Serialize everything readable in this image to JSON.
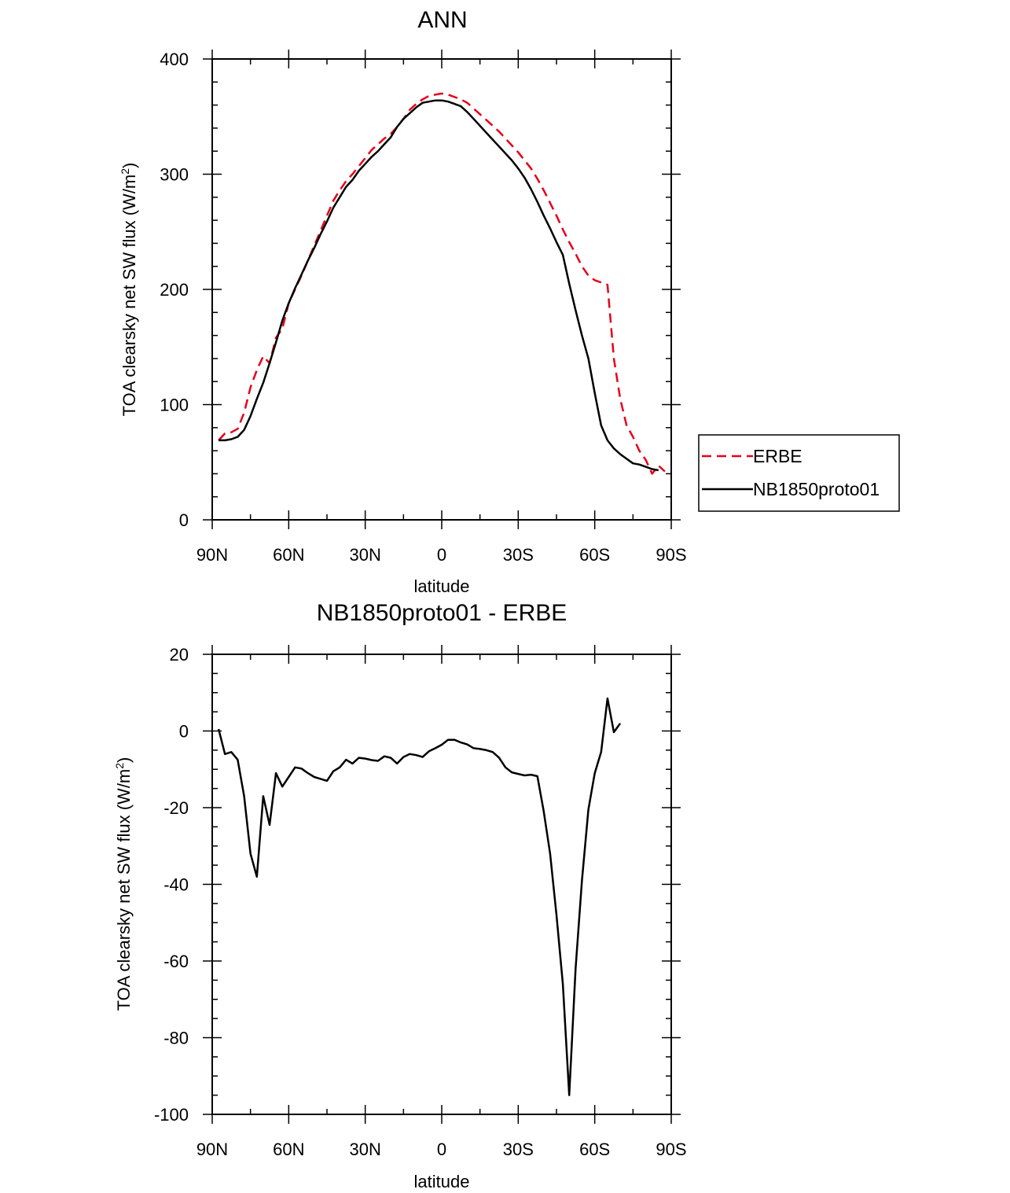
{
  "chart_data": [
    {
      "type": "line",
      "title": "ANN",
      "xlabel": "latitude",
      "ylabel": "TOA clearsky net SW flux (W/m",
      "ylabel_sup": "2",
      "ylabel_end": ")",
      "xlim": [
        90,
        -90
      ],
      "ylim": [
        0,
        400
      ],
      "xticks": [
        90,
        60,
        30,
        0,
        -30,
        -60,
        -90
      ],
      "xtick_labels": [
        "90N",
        "60N",
        "30N",
        "0",
        "30S",
        "60S",
        "90S"
      ],
      "yticks": [
        0,
        100,
        200,
        300,
        400
      ],
      "ytick_labels": [
        "0",
        "100",
        "200",
        "300",
        "400"
      ],
      "legend": {
        "position": "right",
        "entries": [
          "ERBE",
          "NB1850proto01"
        ]
      },
      "series": [
        {
          "name": "ERBE",
          "color": "#e8001a",
          "style": "dashed",
          "points": [
            [
              87.5,
              69
            ],
            [
              85,
              75
            ],
            [
              82.5,
              76
            ],
            [
              80,
              79
            ],
            [
              77.5,
              93
            ],
            [
              75,
              115
            ],
            [
              72.5,
              130
            ],
            [
              70,
              142
            ],
            [
              67.5,
              136
            ],
            [
              65,
              158
            ],
            [
              62.5,
              166
            ],
            [
              60,
              188
            ],
            [
              57.5,
              200
            ],
            [
              55,
              212
            ],
            [
              52.5,
              225
            ],
            [
              50,
              238
            ],
            [
              47.5,
              251
            ],
            [
              45,
              264
            ],
            [
              42.5,
              277
            ],
            [
              40,
              286
            ],
            [
              37.5,
              294
            ],
            [
              35,
              300
            ],
            [
              32.5,
              307
            ],
            [
              30,
              314
            ],
            [
              27.5,
              321
            ],
            [
              25,
              326
            ],
            [
              22.5,
              331
            ],
            [
              20,
              335
            ],
            [
              17.5,
              341
            ],
            [
              15,
              348
            ],
            [
              12.5,
              356
            ],
            [
              10,
              361
            ],
            [
              7.5,
              365
            ],
            [
              5,
              368
            ],
            [
              2.5,
              369
            ],
            [
              0,
              370
            ],
            [
              -2.5,
              369
            ],
            [
              -5,
              367
            ],
            [
              -7.5,
              365
            ],
            [
              -10,
              362
            ],
            [
              -12.5,
              357
            ],
            [
              -15,
              352
            ],
            [
              -17.5,
              347
            ],
            [
              -20,
              342
            ],
            [
              -22.5,
              337
            ],
            [
              -25,
              331
            ],
            [
              -27.5,
              325
            ],
            [
              -30,
              319
            ],
            [
              -32.5,
              312
            ],
            [
              -35,
              305
            ],
            [
              -37.5,
              296
            ],
            [
              -40,
              286
            ],
            [
              -42.5,
              275
            ],
            [
              -45,
              264
            ],
            [
              -47.5,
              252
            ],
            [
              -50,
              241
            ],
            [
              -52.5,
              231
            ],
            [
              -55,
              220
            ],
            [
              -57.5,
              212
            ],
            [
              -60,
              208
            ],
            [
              -62.5,
              206
            ],
            [
              -65,
              204
            ],
            [
              -67.5,
              140
            ],
            [
              -70,
              105
            ],
            [
              -72.5,
              82
            ],
            [
              -75,
              72
            ],
            [
              -77.5,
              60
            ],
            [
              -80,
              52
            ],
            [
              -82.5,
              40
            ],
            [
              -85,
              47
            ],
            [
              -87.5,
              42
            ]
          ]
        },
        {
          "name": "NB1850proto01",
          "color": "#000000",
          "style": "solid",
          "points": [
            [
              87.5,
              69
            ],
            [
              85,
              69
            ],
            [
              82.5,
              70
            ],
            [
              80,
              72
            ],
            [
              77.5,
              78
            ],
            [
              75,
              90
            ],
            [
              72.5,
              105
            ],
            [
              70,
              119
            ],
            [
              67.5,
              136
            ],
            [
              65,
              154
            ],
            [
              62.5,
              173
            ],
            [
              60,
              188
            ],
            [
              57.5,
              201
            ],
            [
              55,
              213
            ],
            [
              52.5,
              225
            ],
            [
              50,
              236
            ],
            [
              47.5,
              248
            ],
            [
              45,
              259
            ],
            [
              42.5,
              271
            ],
            [
              40,
              280
            ],
            [
              37.5,
              289
            ],
            [
              35,
              295
            ],
            [
              32.5,
              303
            ],
            [
              30,
              309
            ],
            [
              27.5,
              315
            ],
            [
              25,
              320
            ],
            [
              22.5,
              326
            ],
            [
              20,
              332
            ],
            [
              17.5,
              341
            ],
            [
              15,
              348
            ],
            [
              12.5,
              353
            ],
            [
              10,
              358
            ],
            [
              7.5,
              362
            ],
            [
              5,
              363
            ],
            [
              2.5,
              364
            ],
            [
              0,
              364
            ],
            [
              -2.5,
              363
            ],
            [
              -5,
              361
            ],
            [
              -7.5,
              359
            ],
            [
              -10,
              354
            ],
            [
              -12.5,
              348
            ],
            [
              -15,
              342
            ],
            [
              -17.5,
              336
            ],
            [
              -20,
              330
            ],
            [
              -22.5,
              324
            ],
            [
              -25,
              318
            ],
            [
              -27.5,
              312
            ],
            [
              -30,
              305
            ],
            [
              -32.5,
              297
            ],
            [
              -35,
              287
            ],
            [
              -37.5,
              276
            ],
            [
              -40,
              264
            ],
            [
              -42.5,
              253
            ],
            [
              -45,
              241
            ],
            [
              -47.5,
              230
            ],
            [
              -50,
              205
            ],
            [
              -52.5,
              182
            ],
            [
              -55,
              160
            ],
            [
              -57.5,
              140
            ],
            [
              -60,
              110
            ],
            [
              -62.5,
              82
            ],
            [
              -65,
              69
            ],
            [
              -67.5,
              62
            ],
            [
              -70,
              57
            ],
            [
              -72.5,
              53
            ],
            [
              -75,
              49
            ],
            [
              -77.5,
              48
            ],
            [
              -80,
              46
            ],
            [
              -82.5,
              44
            ],
            [
              -85,
              43
            ]
          ]
        }
      ]
    },
    {
      "type": "line",
      "title": "NB1850proto01 - ERBE",
      "xlabel": "latitude",
      "ylabel": "TOA clearsky net SW flux (W/m",
      "ylabel_sup": "2",
      "ylabel_end": ")",
      "xlim": [
        90,
        -90
      ],
      "ylim": [
        -100,
        20
      ],
      "xticks": [
        90,
        60,
        30,
        0,
        -30,
        -60,
        -90
      ],
      "xtick_labels": [
        "90N",
        "60N",
        "30N",
        "0",
        "30S",
        "60S",
        "90S"
      ],
      "yticks": [
        -100,
        -80,
        -60,
        -40,
        -20,
        0,
        20
      ],
      "ytick_labels": [
        "-100",
        "-80",
        "-60",
        "-40",
        "-20",
        "0",
        "20"
      ],
      "series": [
        {
          "name": "NB1850proto01 - ERBE",
          "color": "#000000",
          "style": "solid",
          "points": [
            [
              87.5,
              0.5
            ],
            [
              85,
              -6
            ],
            [
              82.5,
              -5.5
            ],
            [
              80,
              -7.5
            ],
            [
              77.5,
              -17
            ],
            [
              75,
              -32
            ],
            [
              72.5,
              -38
            ],
            [
              70,
              -17
            ],
            [
              67.5,
              -24.5
            ],
            [
              65,
              -11
            ],
            [
              62.5,
              -14.5
            ],
            [
              60,
              -12
            ],
            [
              57.5,
              -9.5
            ],
            [
              55,
              -9.8
            ],
            [
              52.5,
              -11
            ],
            [
              50,
              -12
            ],
            [
              47.5,
              -12.5
            ],
            [
              45,
              -13
            ],
            [
              42.5,
              -10.5
            ],
            [
              40,
              -9.5
            ],
            [
              37.5,
              -7.5
            ],
            [
              35,
              -8.5
            ],
            [
              32.5,
              -7
            ],
            [
              30,
              -7.2
            ],
            [
              27.5,
              -7.6
            ],
            [
              25,
              -7.8
            ],
            [
              22.5,
              -6.6
            ],
            [
              20,
              -7
            ],
            [
              17.5,
              -8.5
            ],
            [
              15,
              -6.8
            ],
            [
              12.5,
              -6
            ],
            [
              10,
              -6.3
            ],
            [
              7.5,
              -6.8
            ],
            [
              5,
              -5.3
            ],
            [
              2.5,
              -4.5
            ],
            [
              0,
              -3.6
            ],
            [
              -2.5,
              -2.3
            ],
            [
              -5,
              -2.3
            ],
            [
              -7.5,
              -3
            ],
            [
              -10,
              -3.5
            ],
            [
              -12.5,
              -4.5
            ],
            [
              -15,
              -4.7
            ],
            [
              -17.5,
              -5
            ],
            [
              -20,
              -5.5
            ],
            [
              -22.5,
              -7
            ],
            [
              -25,
              -9.5
            ],
            [
              -27.5,
              -10.8
            ],
            [
              -30,
              -11.2
            ],
            [
              -32.5,
              -11.6
            ],
            [
              -35,
              -11.4
            ],
            [
              -37.5,
              -11.8
            ],
            [
              -40,
              -21
            ],
            [
              -42.5,
              -32
            ],
            [
              -45,
              -48
            ],
            [
              -47.5,
              -66
            ],
            [
              -50,
              -95
            ],
            [
              -52.5,
              -62
            ],
            [
              -55,
              -39
            ],
            [
              -57.5,
              -20.5
            ],
            [
              -60,
              -11
            ],
            [
              -62.5,
              -5.5
            ],
            [
              -65,
              8.5
            ],
            [
              -67.5,
              -0.3
            ],
            [
              -70,
              2
            ]
          ]
        }
      ]
    }
  ]
}
